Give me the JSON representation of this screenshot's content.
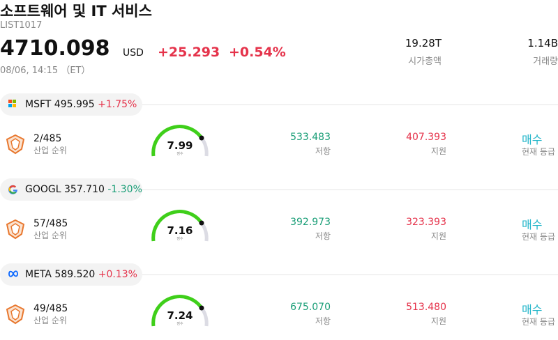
{
  "header": {
    "title": "소프트웨어 및 IT 서비스",
    "code": "LIST1017",
    "price": "4710.098",
    "currency": "USD",
    "change": "+25.293",
    "change_pct": "+0.54%",
    "time": "08/06, 14:15 （ET）",
    "market_cap": "19.28T",
    "market_cap_label": "시가총액",
    "volume": "1.14B",
    "volume_label": "거래량"
  },
  "stocks": [
    {
      "ticker": "MSFT",
      "price": "495.995",
      "change": "+1.75%",
      "rank": "2/485",
      "rank_label": "산업 순위",
      "score": "7.99",
      "score_label": "점수",
      "resistance": "533.483",
      "resistance_label": "저항",
      "support": "407.393",
      "support_label": "지원",
      "rating": "매수",
      "rating_label": "현재 등급"
    },
    {
      "ticker": "GOOGL",
      "price": "357.710",
      "change": "-1.30%",
      "rank": "57/485",
      "rank_label": "산업 순위",
      "score": "7.16",
      "score_label": "점수",
      "resistance": "392.973",
      "resistance_label": "저항",
      "support": "323.393",
      "support_label": "지원",
      "rating": "매수",
      "rating_label": "현재 등급"
    },
    {
      "ticker": "META",
      "price": "589.520",
      "change": "+0.13%",
      "rank": "49/485",
      "rank_label": "산업 순위",
      "score": "7.24",
      "score_label": "점수",
      "resistance": "675.070",
      "resistance_label": "저항",
      "support": "513.480",
      "support_label": "지원",
      "rating": "매수",
      "rating_label": "현재 등급"
    }
  ]
}
